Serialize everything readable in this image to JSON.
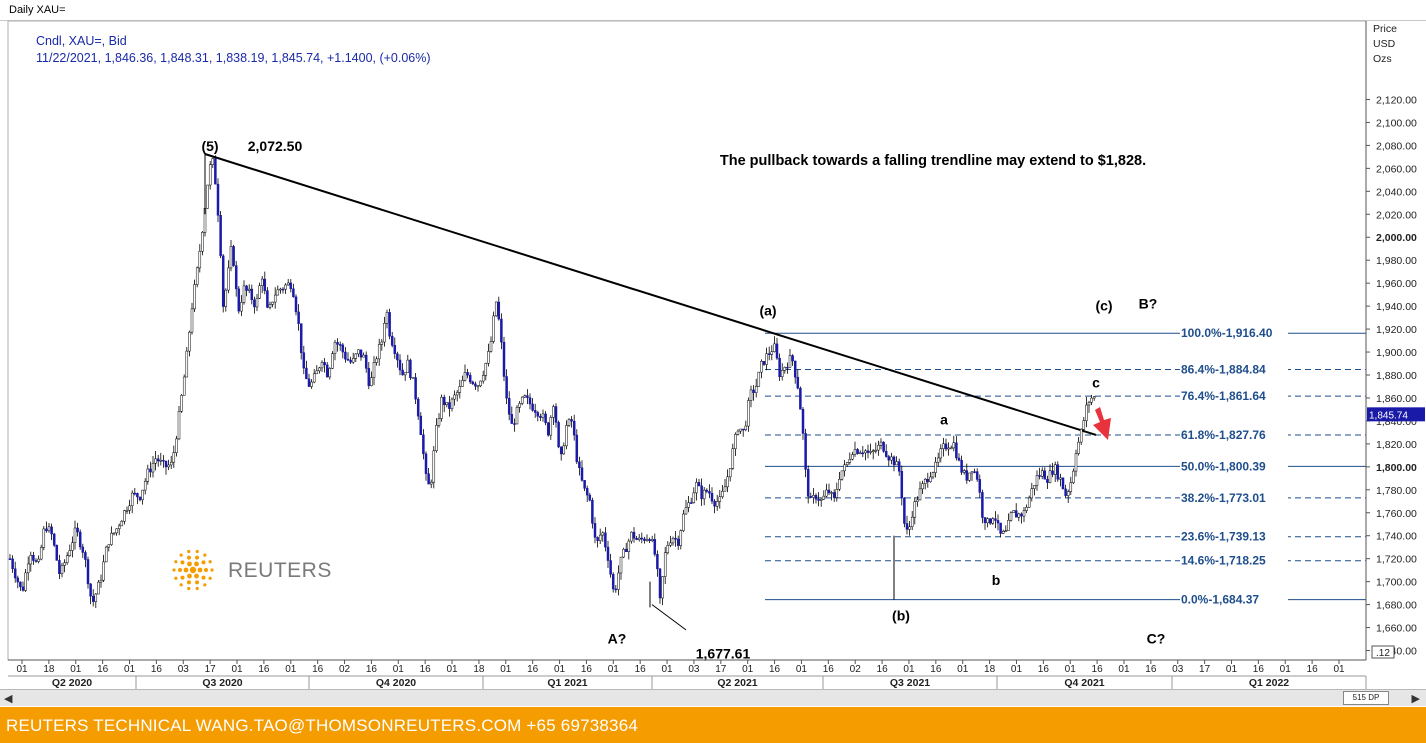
{
  "window": {
    "title": "Daily XAU="
  },
  "instrument": {
    "line1": "Cndl, XAU=, Bid",
    "line2": "11/22/2021, 1,846.36, 1,848.31, 1,838.19, 1,845.74, +1.1400, (+0.06%)"
  },
  "axis": {
    "title_lines": [
      "Price",
      "USD",
      "Ozs"
    ],
    "current_price_tag": "1,845.74",
    "corner_label": ".12"
  },
  "footer": {
    "text": "REUTERS TECHNICAL  WANG.TAO@THOMSONREUTERS.COM  +65 69738364"
  },
  "logo": {
    "text": "REUTERS"
  },
  "scrollbar": {
    "left_arrow": "◀",
    "right_arrow": "▶",
    "zoom_label": "515 DP"
  },
  "colors": {
    "candle_up": "#ffffff",
    "candle_down": "#1a1aa8",
    "wick": "#000000",
    "fib_line": "#1f4e8c",
    "fib_label": "#1f4e8c",
    "footer_bg": "#f59c00",
    "arrow": "#e8323c"
  },
  "chart_data": {
    "type": "candlestick",
    "ylim": [
      1630,
      2120
    ],
    "y_ticks": [
      "1,640.00",
      "1,660.00",
      "1,680.00",
      "1,700.00",
      "1,720.00",
      "1,740.00",
      "1,760.00",
      "1,780.00",
      "1,800.00",
      "1,820.00",
      "1,840.00",
      "1,860.00",
      "1,880.00",
      "1,900.00",
      "1,920.00",
      "1,940.00",
      "1,960.00",
      "1,980.00",
      "2,000.00",
      "2,020.00",
      "2,040.00",
      "2,060.00",
      "2,080.00",
      "2,100.00",
      "2,120.00"
    ],
    "bold_y_ticks": [
      "1,800.00",
      "2,000.00"
    ],
    "x_day_ticks": [
      "01",
      "18",
      "01",
      "16",
      "01",
      "16",
      "03",
      "17",
      "01",
      "16",
      "01",
      "16",
      "02",
      "16",
      "01",
      "16",
      "01",
      "18",
      "01",
      "16",
      "01",
      "16",
      "01",
      "16",
      "01",
      "03",
      "17",
      "01",
      "16",
      "01",
      "16",
      "02",
      "16",
      "01",
      "16",
      "01",
      "18",
      "01",
      "16",
      "01",
      "16",
      "01",
      "16",
      "03",
      "17",
      "01",
      "16",
      "01",
      "16",
      "01"
    ],
    "x_quarters": [
      "Q2 2020",
      "Q3 2020",
      "Q4 2020",
      "Q1 2021",
      "Q2 2021",
      "Q3 2021",
      "Q4 2021",
      "Q1 2022"
    ],
    "price_path": [
      [
        0,
        1720
      ],
      [
        6,
        1705
      ],
      [
        12,
        1690
      ],
      [
        20,
        1728
      ],
      [
        28,
        1712
      ],
      [
        35,
        1750
      ],
      [
        42,
        1740
      ],
      [
        50,
        1705
      ],
      [
        58,
        1725
      ],
      [
        66,
        1745
      ],
      [
        74,
        1725
      ],
      [
        82,
        1680
      ],
      [
        90,
        1700
      ],
      [
        98,
        1735
      ],
      [
        106,
        1745
      ],
      [
        114,
        1760
      ],
      [
        122,
        1775
      ],
      [
        130,
        1775
      ],
      [
        138,
        1795
      ],
      [
        146,
        1808
      ],
      [
        154,
        1800
      ],
      [
        162,
        1802
      ],
      [
        170,
        1850
      ],
      [
        176,
        1890
      ],
      [
        182,
        1940
      ],
      [
        188,
        1975
      ],
      [
        194,
        2020
      ],
      [
        198,
        2050
      ],
      [
        202,
        2070
      ],
      [
        206,
        2045
      ],
      [
        210,
        2000
      ],
      [
        213,
        1940
      ],
      [
        217,
        1960
      ],
      [
        222,
        1995
      ],
      [
        228,
        1935
      ],
      [
        234,
        1955
      ],
      [
        240,
        1950
      ],
      [
        246,
        1940
      ],
      [
        252,
        1968
      ],
      [
        258,
        1932
      ],
      [
        264,
        1950
      ],
      [
        270,
        1955
      ],
      [
        276,
        1958
      ],
      [
        282,
        1960
      ],
      [
        288,
        1928
      ],
      [
        294,
        1880
      ],
      [
        300,
        1870
      ],
      [
        306,
        1880
      ],
      [
        312,
        1895
      ],
      [
        318,
        1880
      ],
      [
        324,
        1910
      ],
      [
        330,
        1905
      ],
      [
        336,
        1895
      ],
      [
        342,
        1890
      ],
      [
        348,
        1900
      ],
      [
        354,
        1895
      ],
      [
        360,
        1870
      ],
      [
        366,
        1895
      ],
      [
        372,
        1910
      ],
      [
        376,
        1940
      ],
      [
        380,
        1915
      ],
      [
        386,
        1900
      ],
      [
        392,
        1880
      ],
      [
        398,
        1890
      ],
      [
        404,
        1870
      ],
      [
        410,
        1838
      ],
      [
        416,
        1790
      ],
      [
        420,
        1780
      ],
      [
        426,
        1830
      ],
      [
        432,
        1860
      ],
      [
        438,
        1850
      ],
      [
        444,
        1860
      ],
      [
        450,
        1868
      ],
      [
        456,
        1882
      ],
      [
        462,
        1875
      ],
      [
        468,
        1872
      ],
      [
        474,
        1885
      ],
      [
        480,
        1902
      ],
      [
        486,
        1945
      ],
      [
        490,
        1920
      ],
      [
        496,
        1860
      ],
      [
        502,
        1835
      ],
      [
        508,
        1850
      ],
      [
        514,
        1860
      ],
      [
        520,
        1855
      ],
      [
        526,
        1850
      ],
      [
        532,
        1845
      ],
      [
        538,
        1830
      ],
      [
        544,
        1860
      ],
      [
        550,
        1800
      ],
      [
        556,
        1835
      ],
      [
        562,
        1840
      ],
      [
        568,
        1800
      ],
      [
        574,
        1780
      ],
      [
        580,
        1770
      ],
      [
        586,
        1730
      ],
      [
        592,
        1745
      ],
      [
        598,
        1722
      ],
      [
        604,
        1688
      ],
      [
        610,
        1715
      ],
      [
        616,
        1730
      ],
      [
        622,
        1742
      ],
      [
        628,
        1735
      ],
      [
        634,
        1738
      ],
      [
        640,
        1740
      ],
      [
        646,
        1720
      ],
      [
        650,
        1682
      ],
      [
        656,
        1730
      ],
      [
        662,
        1740
      ],
      [
        668,
        1735
      ],
      [
        674,
        1760
      ],
      [
        680,
        1770
      ],
      [
        686,
        1785
      ],
      [
        692,
        1775
      ],
      [
        698,
        1780
      ],
      [
        704,
        1770
      ],
      [
        710,
        1770
      ],
      [
        716,
        1785
      ],
      [
        722,
        1810
      ],
      [
        728,
        1835
      ],
      [
        734,
        1830
      ],
      [
        740,
        1862
      ],
      [
        746,
        1870
      ],
      [
        752,
        1890
      ],
      [
        758,
        1898
      ],
      [
        764,
        1905
      ],
      [
        770,
        1880
      ],
      [
        776,
        1890
      ],
      [
        782,
        1895
      ],
      [
        788,
        1870
      ],
      [
        792,
        1840
      ],
      [
        796,
        1790
      ],
      [
        800,
        1768
      ],
      [
        806,
        1775
      ],
      [
        812,
        1770
      ],
      [
        818,
        1780
      ],
      [
        824,
        1770
      ],
      [
        830,
        1795
      ],
      [
        836,
        1800
      ],
      [
        842,
        1815
      ],
      [
        848,
        1815
      ],
      [
        854,
        1815
      ],
      [
        860,
        1810
      ],
      [
        866,
        1815
      ],
      [
        872,
        1820
      ],
      [
        878,
        1810
      ],
      [
        884,
        1805
      ],
      [
        890,
        1795
      ],
      [
        894,
        1752
      ],
      [
        898,
        1740
      ],
      [
        902,
        1760
      ],
      [
        908,
        1775
      ],
      [
        914,
        1785
      ],
      [
        920,
        1795
      ],
      [
        926,
        1800
      ],
      [
        932,
        1815
      ],
      [
        938,
        1820
      ],
      [
        944,
        1820
      ],
      [
        950,
        1800
      ],
      [
        956,
        1790
      ],
      [
        962,
        1800
      ],
      [
        968,
        1790
      ],
      [
        972,
        1760
      ],
      [
        978,
        1750
      ],
      [
        984,
        1760
      ],
      [
        990,
        1740
      ],
      [
        996,
        1742
      ],
      [
        1002,
        1760
      ],
      [
        1008,
        1758
      ],
      [
        1014,
        1760
      ],
      [
        1020,
        1775
      ],
      [
        1026,
        1790
      ],
      [
        1032,
        1795
      ],
      [
        1038,
        1790
      ],
      [
        1044,
        1800
      ],
      [
        1050,
        1790
      ],
      [
        1056,
        1775
      ],
      [
        1062,
        1790
      ],
      [
        1066,
        1815
      ],
      [
        1070,
        1825
      ],
      [
        1076,
        1850
      ],
      [
        1080,
        1860
      ],
      [
        1086,
        1860
      ],
      [
        1092,
        1855
      ],
      [
        1096,
        1845
      ]
    ],
    "trendline": {
      "from": [
        205,
        2072.5
      ],
      "to": [
        1096,
        1827.76
      ]
    },
    "fib_levels": [
      {
        "label": "100.0%-1,916.40",
        "value": 1916.4,
        "style": "solid"
      },
      {
        "label": "86.4%-1,884.84",
        "value": 1884.84,
        "style": "dashed"
      },
      {
        "label": "76.4%-1,861.64",
        "value": 1861.64,
        "style": "dashed"
      },
      {
        "label": "61.8%-1,827.76",
        "value": 1827.76,
        "style": "dashed"
      },
      {
        "label": "50.0%-1,800.39",
        "value": 1800.39,
        "style": "solid"
      },
      {
        "label": "38.2%-1,773.01",
        "value": 1773.01,
        "style": "dashed"
      },
      {
        "label": "23.6%-1,739.13",
        "value": 1739.13,
        "style": "dashed"
      },
      {
        "label": "14.6%-1,718.25",
        "value": 1718.25,
        "style": "dashed"
      },
      {
        "label": "0.0%-1,684.37",
        "value": 1684.37,
        "style": "solid"
      }
    ],
    "annotations": [
      {
        "text": "(5)",
        "x": 210,
        "y": 2075
      },
      {
        "text": "2,072.50",
        "x": 275,
        "y": 2075
      },
      {
        "text": "The pullback towards a falling trendline may extend to $1,828.",
        "x": 933,
        "y": 2063
      },
      {
        "text": "(a)",
        "x": 768,
        "y": 1932
      },
      {
        "text": "(c)",
        "x": 1104,
        "y": 1936
      },
      {
        "text": "B?",
        "x": 1148,
        "y": 1938
      },
      {
        "text": "c",
        "x": 1096,
        "y": 1869
      },
      {
        "text": "a",
        "x": 944,
        "y": 1837
      },
      {
        "text": "b",
        "x": 996,
        "y": 1697
      },
      {
        "text": "(b)",
        "x": 901,
        "y": 1666
      },
      {
        "text": "A?",
        "x": 617,
        "y": 1646
      },
      {
        "text": "1,677.61",
        "x": 723,
        "y": 1633
      },
      {
        "text": "C?",
        "x": 1156,
        "y": 1646
      }
    ]
  }
}
